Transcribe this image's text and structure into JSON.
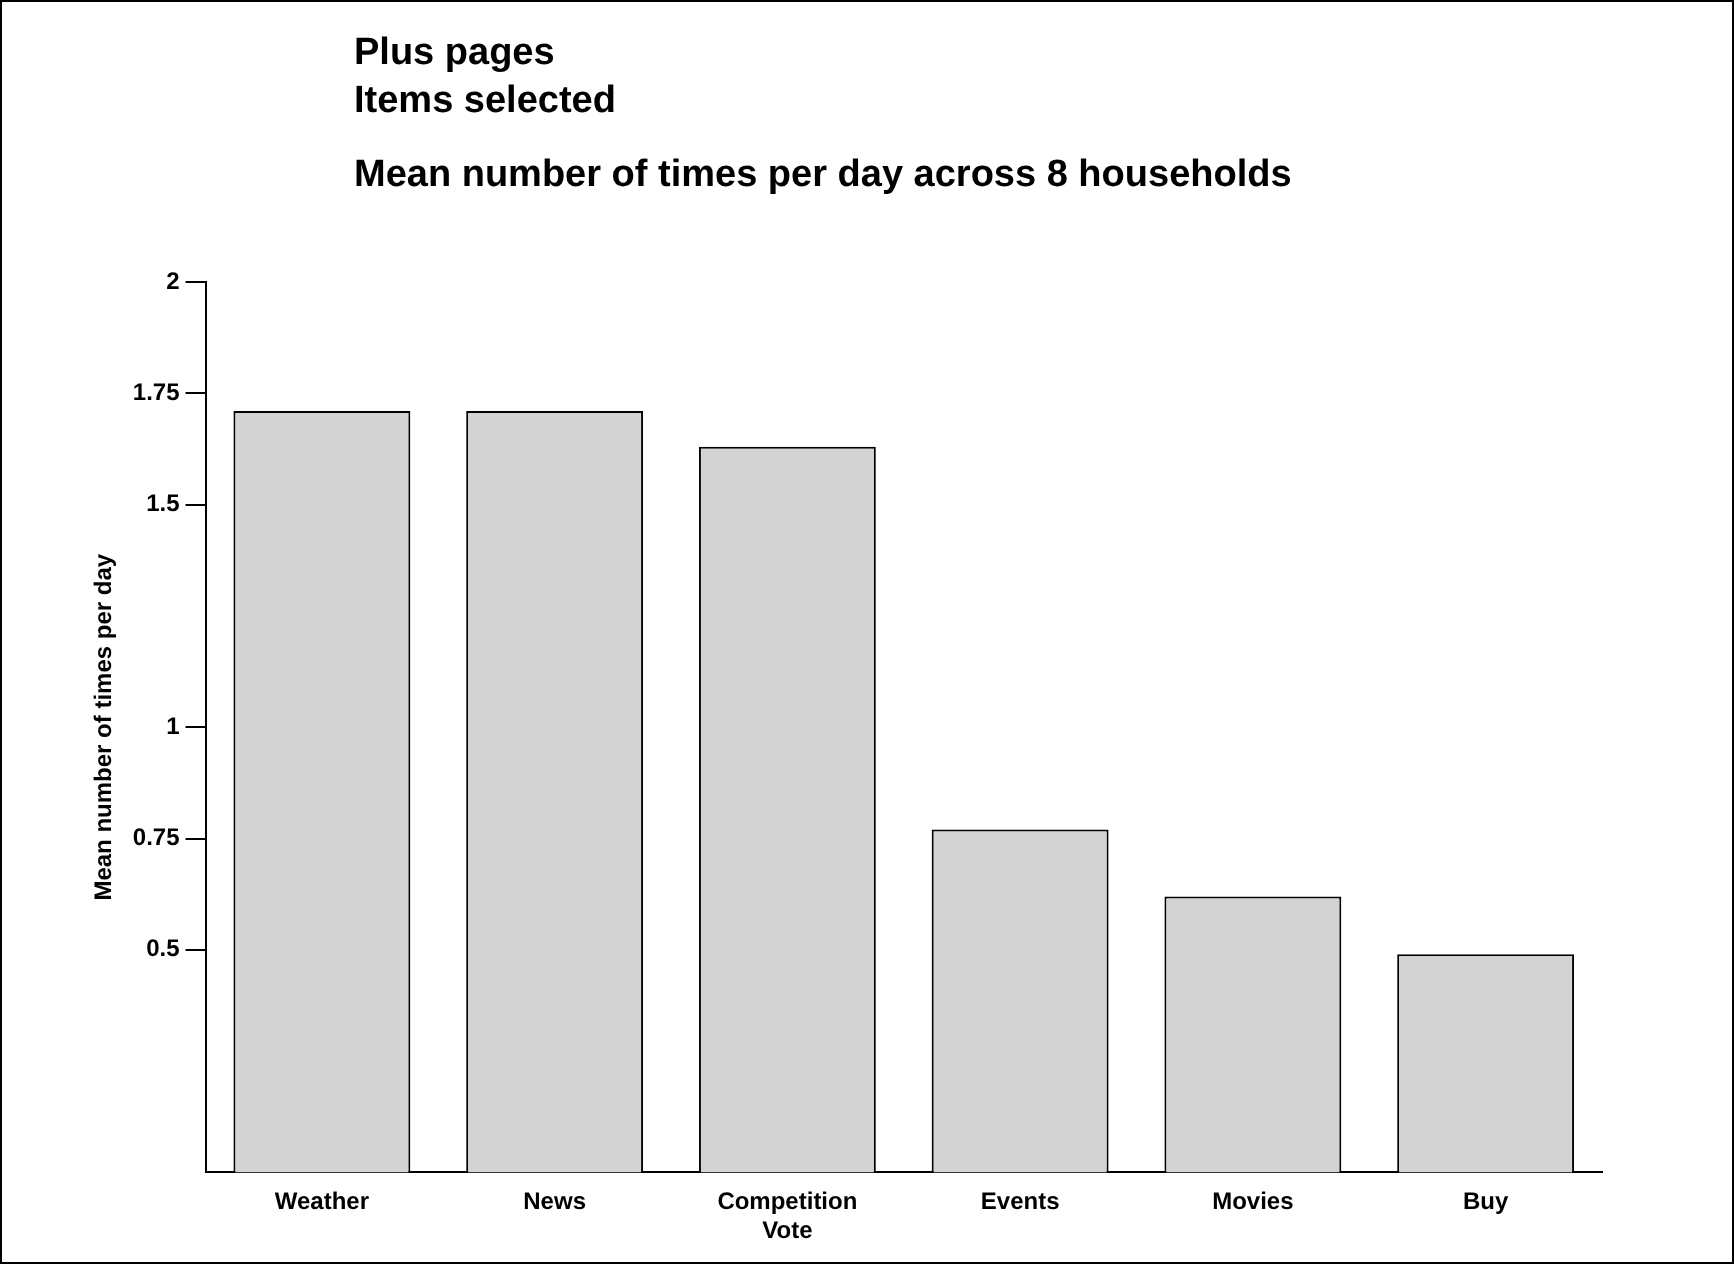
{
  "chart_data": {
    "type": "bar",
    "title": "Plus pages\nItems selected",
    "subtitle": "Mean number of times per day across 8 households",
    "ylabel": "Mean number of times per day",
    "categories": [
      "Weather",
      "News",
      "Competition Vote",
      "Events",
      "Movies",
      "Buy"
    ],
    "values": [
      1.71,
      1.71,
      1.63,
      0.77,
      0.62,
      0.49
    ],
    "color": "#d3d3d3",
    "ylim": [
      0,
      2
    ],
    "yticks": [
      0.5,
      0.75,
      1,
      1.5,
      1.75,
      2
    ],
    "grid": false,
    "legend": false
  }
}
